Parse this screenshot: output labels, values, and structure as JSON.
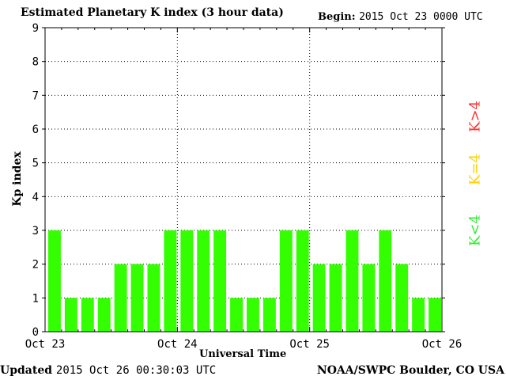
{
  "header": {
    "title": "Estimated Planetary K index (3 hour data)",
    "begin_label": "Begin:",
    "begin_value": "2015 Oct 23 0000 UTC"
  },
  "footer": {
    "updated_label": "Updated",
    "updated_value": "2015 Oct 26 00:30:03 UTC",
    "credit": "NOAA/SWPC Boulder, CO USA"
  },
  "legend": {
    "high": {
      "text": "K>4",
      "color": "#ff3030"
    },
    "equal": {
      "text": "K=4",
      "color": "#ffd000"
    },
    "low": {
      "text": "K<4",
      "color": "#33ee33"
    }
  },
  "chart_data": {
    "type": "bar",
    "title": "Estimated Planetary K index (3 hour data)",
    "xlabel": "Universal Time",
    "ylabel": "Kp index",
    "ylim": [
      0,
      9
    ],
    "yticks": [
      0,
      1,
      2,
      3,
      4,
      5,
      6,
      7,
      8,
      9
    ],
    "xticks": [
      "Oct 23",
      "Oct 24",
      "Oct 25",
      "Oct 26"
    ],
    "grid": true,
    "bar_color": "#33ff00",
    "interval_hours": 3,
    "values": [
      3,
      1,
      1,
      1,
      2,
      2,
      2,
      3,
      3,
      3,
      3,
      1,
      1,
      1,
      3,
      3,
      2,
      2,
      3,
      2,
      3,
      2,
      1,
      1
    ]
  }
}
